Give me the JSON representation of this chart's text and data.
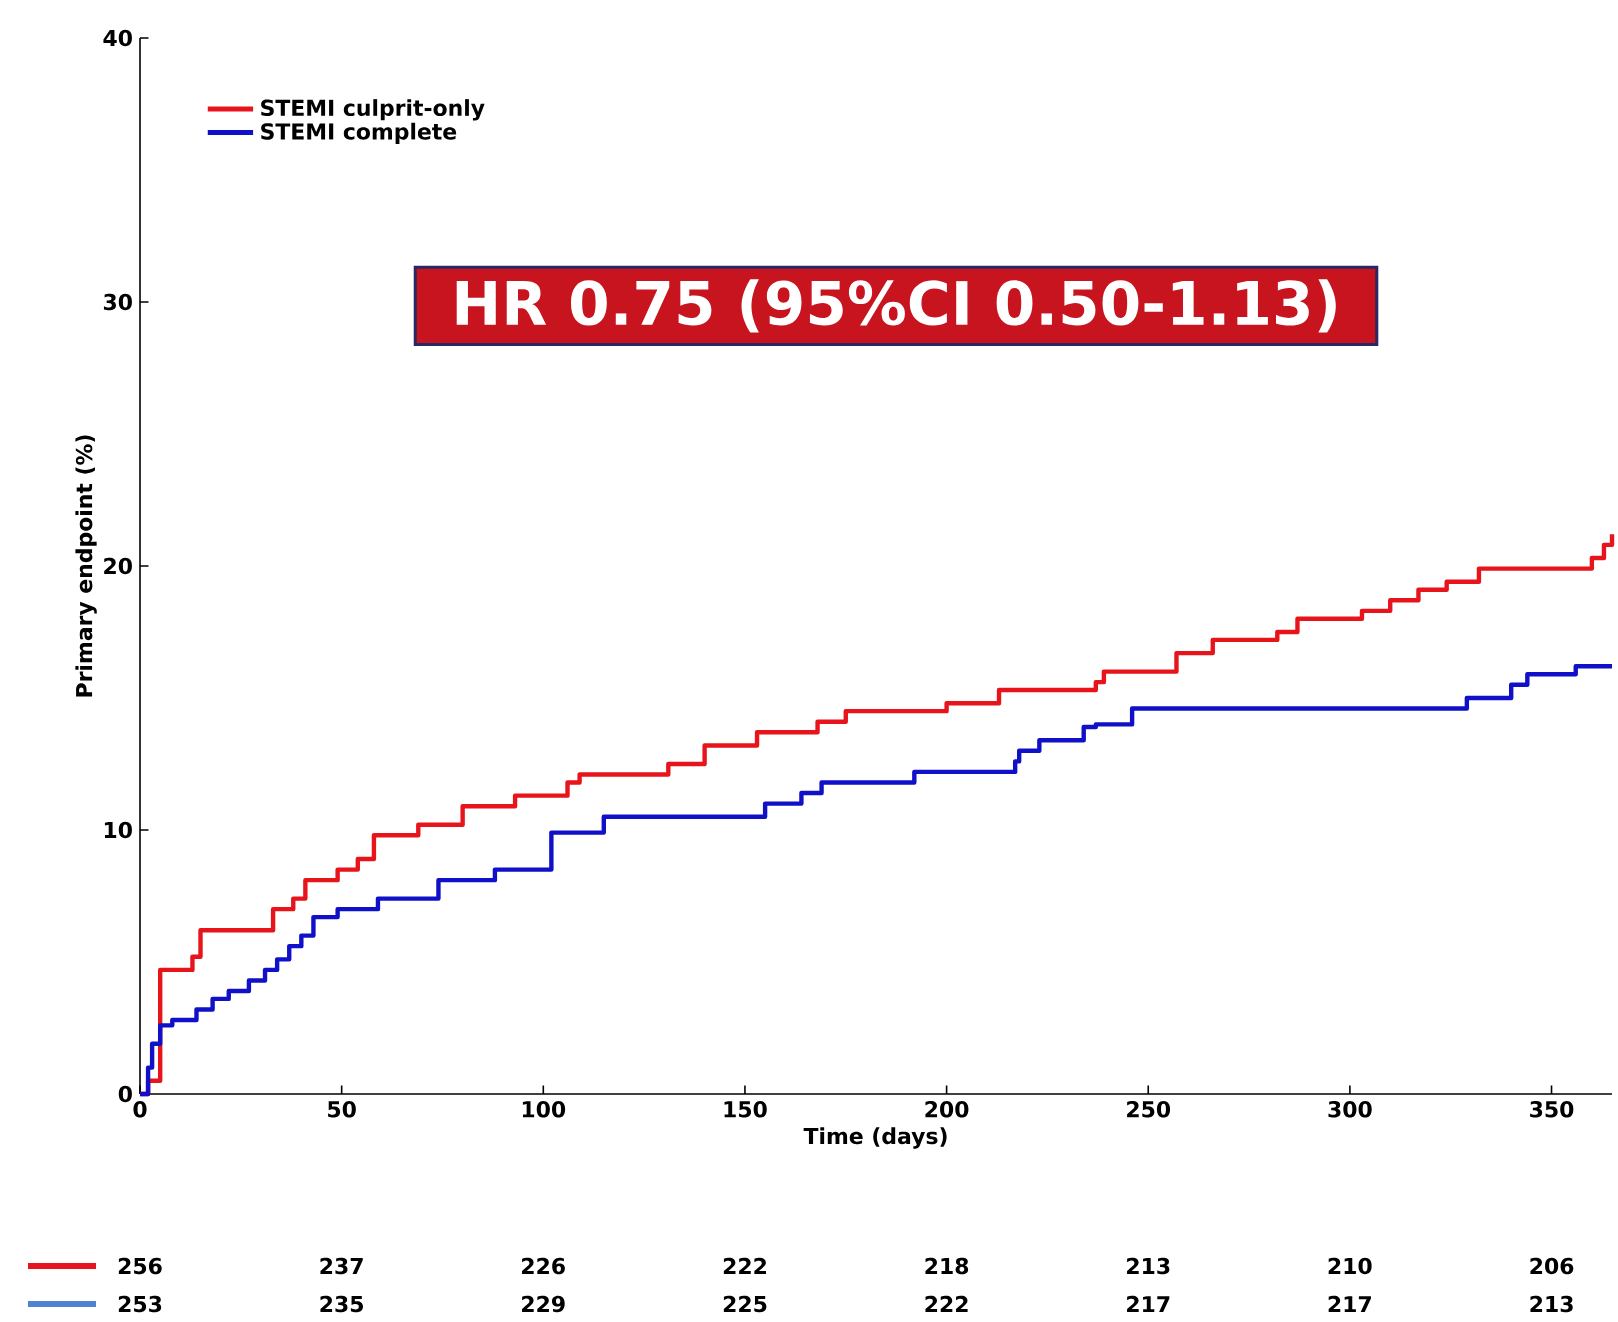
{
  "chart_data": {
    "type": "step",
    "xlabel": "Time (days)",
    "ylabel": "Primary endpoint (%)",
    "xlim": [
      0,
      365
    ],
    "ylim": [
      0,
      40
    ],
    "xticks": [
      0,
      50,
      100,
      150,
      200,
      250,
      300,
      350
    ],
    "yticks": [
      0,
      10,
      20,
      30,
      40
    ],
    "legend": "top left",
    "series": [
      {
        "name": "STEMI culprit-only",
        "color": "#e8141c",
        "x": [
          0,
          2,
          5,
          13,
          15,
          33,
          38,
          41,
          49,
          54,
          58,
          69,
          80,
          93,
          106,
          109,
          131,
          140,
          153,
          168,
          175,
          200,
          213,
          237,
          239,
          257,
          266,
          282,
          287,
          303,
          310,
          317,
          324,
          332,
          360,
          363,
          365
        ],
        "values": [
          0,
          0.5,
          4.7,
          5.2,
          6.2,
          7.0,
          7.4,
          8.1,
          8.5,
          8.9,
          9.8,
          10.2,
          10.9,
          11.3,
          11.8,
          12.1,
          12.5,
          13.2,
          13.7,
          14.1,
          14.5,
          14.8,
          15.3,
          15.6,
          16.0,
          16.7,
          17.2,
          17.5,
          18.0,
          18.3,
          18.7,
          19.1,
          19.4,
          19.9,
          20.3,
          20.8,
          21.2
        ]
      },
      {
        "name": "STEMI complete",
        "color": "#1010c8",
        "x": [
          0,
          2,
          3,
          5,
          8,
          14,
          18,
          22,
          27,
          31,
          34,
          37,
          40,
          43,
          49,
          59,
          74,
          88,
          102,
          115,
          155,
          164,
          169,
          192,
          217,
          218,
          223,
          234,
          237,
          246,
          329,
          340,
          344,
          356,
          365
        ],
        "values": [
          0,
          1.0,
          1.9,
          2.6,
          2.8,
          3.2,
          3.6,
          3.9,
          4.3,
          4.7,
          5.1,
          5.6,
          6.0,
          6.7,
          7.0,
          7.4,
          8.1,
          8.5,
          9.9,
          10.5,
          11.0,
          11.4,
          11.8,
          12.2,
          12.6,
          13.0,
          13.4,
          13.9,
          14.0,
          14.6,
          15.0,
          15.5,
          15.9,
          16.2,
          16.2
        ]
      }
    ],
    "annotations": [
      "HR 0.75 (95%CI 0.50-1.13)",
      "256",
      "237",
      "226",
      "222",
      "218",
      "213",
      "210",
      "206",
      "253",
      "235",
      "229",
      "225",
      "222",
      "217",
      "217",
      "213"
    ]
  }
}
